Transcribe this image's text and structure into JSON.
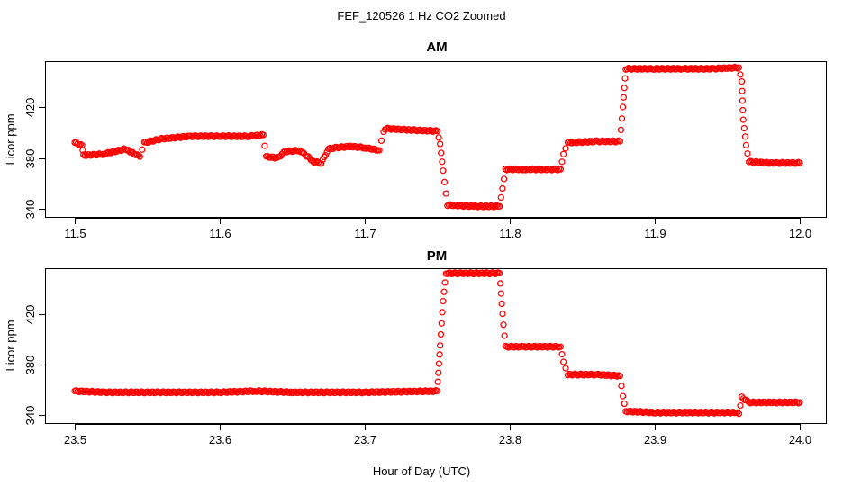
{
  "figure": {
    "title": "FEF_120526  1 Hz CO2 Zoomed",
    "xlabel": "Hour of Day (UTC)",
    "point_color": "#ff0000",
    "marker": "open-circle"
  },
  "chart_data": [
    {
      "type": "scatter",
      "title": "AM",
      "xlabel": "Hour of Day (UTC)",
      "ylabel": "Licor ppm",
      "xlim": [
        11.5,
        12.0
      ],
      "ylim": [
        333,
        456
      ],
      "xticks": [
        "11.5",
        "11.6",
        "11.7",
        "11.8",
        "11.9",
        "12.0"
      ],
      "yticks": [
        "340",
        "380",
        "420"
      ],
      "grid": false,
      "series": [
        {
          "color": "#ff0000",
          "x": [
            11.5,
            11.505,
            11.506,
            11.52,
            11.535,
            11.538,
            11.545,
            11.548,
            11.56,
            11.58,
            11.6,
            11.62,
            11.63,
            11.632,
            11.64,
            11.645,
            11.655,
            11.665,
            11.67,
            11.675,
            11.68,
            11.69,
            11.7,
            11.71,
            11.713,
            11.715,
            11.73,
            11.75,
            11.752,
            11.754,
            11.757,
            11.775,
            11.793,
            11.795,
            11.797,
            11.81,
            11.835,
            11.837,
            11.84,
            11.86,
            11.876,
            11.878,
            11.88,
            11.9,
            11.92,
            11.94,
            11.958,
            11.96,
            11.961,
            11.963,
            11.965,
            11.98,
            12.0
          ],
          "y": [
            392,
            390,
            382,
            383,
            387,
            385,
            381,
            392,
            395,
            397,
            397,
            397,
            398,
            381,
            380,
            385,
            386,
            377,
            376,
            387,
            388,
            389,
            388,
            386,
            401,
            403,
            402,
            401,
            391,
            370,
            343,
            342,
            342,
            356,
            371,
            371,
            371,
            383,
            392,
            393,
            393,
            420,
            450,
            450,
            450,
            450,
            451,
            440,
            410,
            390,
            377,
            376,
            376
          ]
        }
      ]
    },
    {
      "type": "scatter",
      "title": "PM",
      "xlabel": "Hour of Day (UTC)",
      "ylabel": "Licor ppm",
      "xlim": [
        23.5,
        24.0
      ],
      "ylim": [
        333,
        456
      ],
      "xticks": [
        "23.5",
        "23.6",
        "23.7",
        "23.8",
        "23.9",
        "24.0"
      ],
      "yticks": [
        "340",
        "380",
        "420"
      ],
      "grid": false,
      "series": [
        {
          "color": "#ff0000",
          "x": [
            23.5,
            23.52,
            23.55,
            23.6,
            23.625,
            23.65,
            23.7,
            23.75,
            23.752,
            23.754,
            23.756,
            23.775,
            23.793,
            23.795,
            23.797,
            23.81,
            23.835,
            23.837,
            23.84,
            23.86,
            23.876,
            23.878,
            23.88,
            23.9,
            23.93,
            23.956,
            23.958,
            23.96,
            23.965,
            23.98,
            24.0
          ],
          "y": [
            359,
            358,
            358,
            358,
            359,
            358,
            358,
            359,
            395,
            430,
            452,
            452,
            452,
            420,
            394,
            394,
            394,
            382,
            372,
            372,
            371,
            355,
            343,
            342,
            342,
            342,
            341,
            354,
            350,
            350,
            350
          ]
        }
      ]
    }
  ]
}
